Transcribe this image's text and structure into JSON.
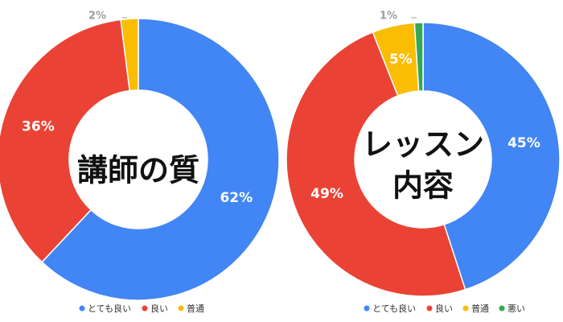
{
  "chart_data": [
    {
      "type": "pie",
      "title": "講師の質",
      "title_lines": [
        "講師の質"
      ],
      "categories": [
        "とても良い",
        "良い",
        "普通"
      ],
      "values": [
        62,
        36,
        2
      ],
      "labels": [
        "62%",
        "36%",
        "2%"
      ],
      "colors": [
        "#4285F4",
        "#EA4335",
        "#FBBC04"
      ],
      "legend": [
        "とても良い",
        "良い",
        "普通"
      ],
      "legend_position": "bottom"
    },
    {
      "type": "pie",
      "title": "レッスン 内容",
      "title_lines": [
        "レッスン",
        "内容"
      ],
      "categories": [
        "とても良い",
        "良い",
        "普通",
        "悪い"
      ],
      "values": [
        45,
        49,
        5,
        1
      ],
      "labels": [
        "45%",
        "49%",
        "5%",
        "1%"
      ],
      "colors": [
        "#4285F4",
        "#EA4335",
        "#FBBC04",
        "#34A853"
      ],
      "legend": [
        "とても良い",
        "良い",
        "普通",
        "悪い"
      ],
      "legend_position": "bottom"
    }
  ]
}
